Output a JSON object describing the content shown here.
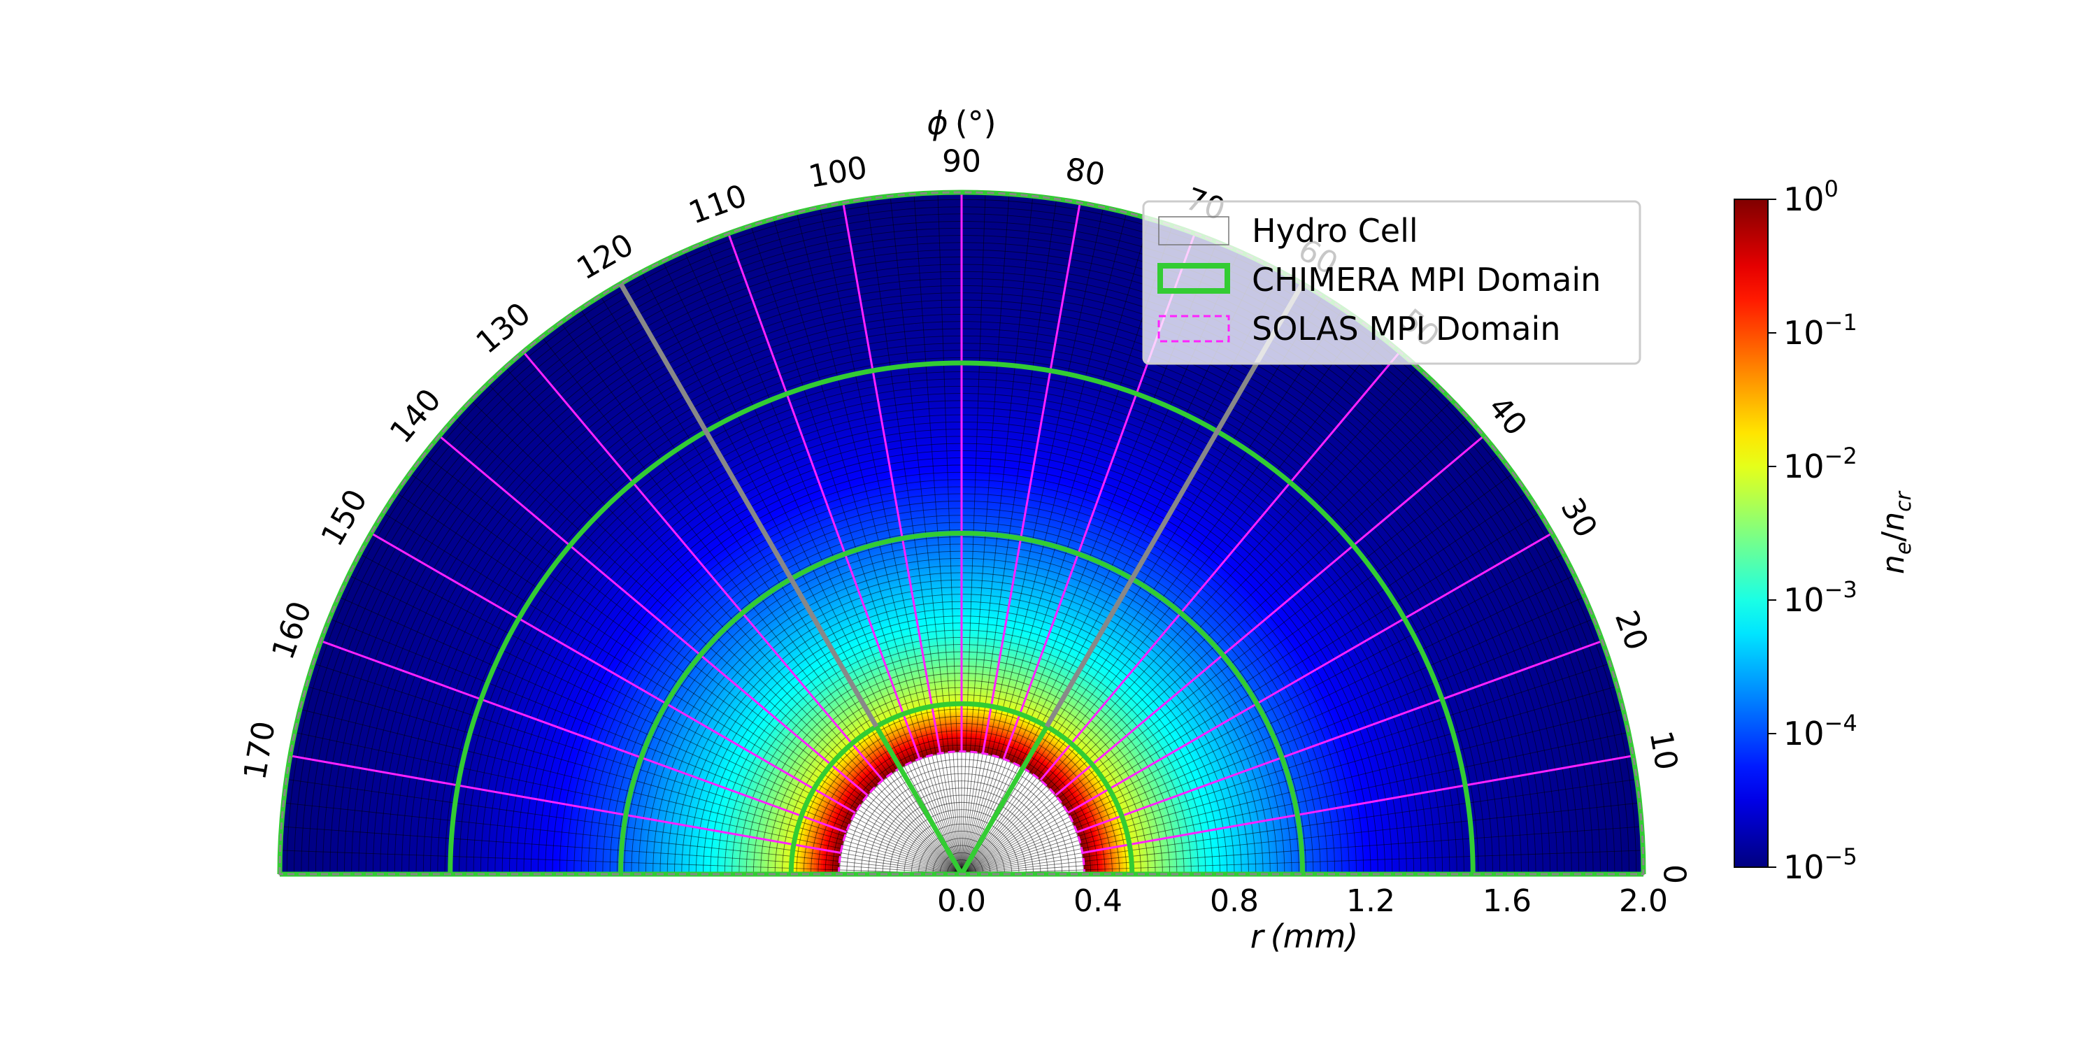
{
  "chart_data": {
    "type": "heatmap",
    "projection": "polar-half",
    "theta_axis": {
      "label_symbol": "ϕ",
      "label_unit": "(°)",
      "range": [
        0,
        180
      ],
      "ticks": [
        0,
        10,
        20,
        30,
        40,
        50,
        60,
        70,
        80,
        90,
        100,
        110,
        120,
        130,
        140,
        150,
        160,
        170
      ]
    },
    "r_axis": {
      "label_symbol": "r",
      "label_unit": "(mm)",
      "range": [
        0,
        2.0
      ],
      "ticks": [
        0,
        0.4,
        0.8,
        1.2,
        1.6,
        2.0
      ],
      "tick_labels": [
        "0.0",
        "0.4",
        "0.8",
        "1.2",
        "1.6",
        "2.0"
      ]
    },
    "colorbar": {
      "label_main": "n",
      "label_main_sub": "e",
      "label_den": "n",
      "label_den_sub": "cr",
      "scale": "log",
      "range": [
        1e-05,
        1
      ],
      "ticks": [
        {
          "base": "10",
          "exp": "0"
        },
        {
          "base": "10",
          "exp": "−1"
        },
        {
          "base": "10",
          "exp": "−2"
        },
        {
          "base": "10",
          "exp": "−3"
        },
        {
          "base": "10",
          "exp": "−4"
        },
        {
          "base": "10",
          "exp": "−5"
        }
      ],
      "colormap": "jet"
    },
    "density_profile": {
      "r_mm": [
        0.36,
        0.4,
        0.45,
        0.5,
        0.6,
        0.7,
        0.8,
        0.9,
        1.0,
        1.2,
        1.5,
        2.0
      ],
      "ne_over_ncr": [
        1.0,
        0.3,
        0.05,
        0.01,
        0.003,
        0.001,
        0.0005,
        0.00025,
        0.00012,
        4e-05,
        1.5e-05,
        1e-05
      ]
    },
    "hydro_cells": {
      "radial_count": 95,
      "angular_count": 90
    },
    "inner_region_radius_mm": 0.36,
    "chimera_domains": {
      "radii_mm": [
        0.5,
        1.0,
        1.5,
        2.0
      ],
      "angle_boundaries_deg": [
        0,
        60,
        120,
        180
      ],
      "color": "#33cc33"
    },
    "solas_domains": {
      "radii_mm": [
        0.36,
        2.0
      ],
      "angle_boundaries_deg": [
        0,
        10,
        20,
        30,
        40,
        50,
        60,
        70,
        80,
        90,
        100,
        110,
        120,
        130,
        140,
        150,
        160,
        170,
        180
      ],
      "color": "#ff22ff"
    },
    "legend": {
      "position": "upper-right",
      "entries": [
        {
          "label": "Hydro Cell",
          "style": "hydro"
        },
        {
          "label": "CHIMERA MPI Domain",
          "style": "chimera"
        },
        {
          "label": "SOLAS MPI Domain",
          "style": "solas"
        }
      ]
    }
  }
}
